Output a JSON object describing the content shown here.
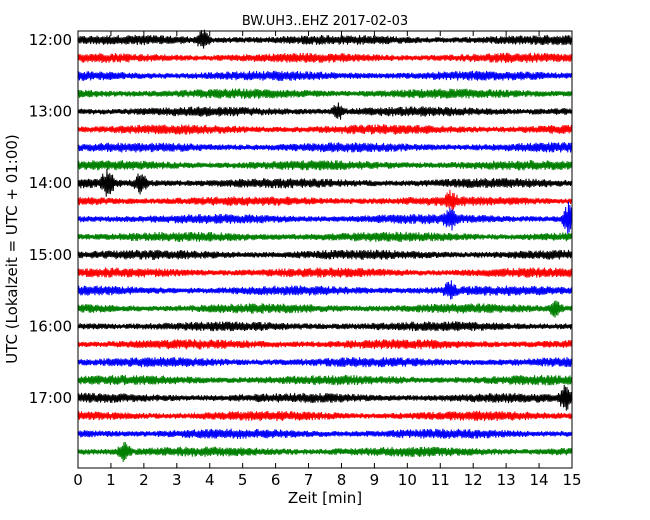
{
  "chart_data": {
    "type": "line",
    "title": "BW.UH3..EHZ 2017-02-03",
    "xlabel": "Zeit  [min]",
    "ylabel": "UTC (Lokalzeit = UTC + 01:00)",
    "xlim": [
      0,
      15
    ],
    "x_ticks": [
      "0",
      "1",
      "2",
      "3",
      "4",
      "5",
      "6",
      "7",
      "8",
      "9",
      "10",
      "11",
      "12",
      "13",
      "14",
      "15"
    ],
    "y_ticks": [
      "12:00",
      "13:00",
      "14:00",
      "15:00",
      "16:00",
      "17:00"
    ],
    "trace_start": "12:00",
    "trace_interval_min": 15,
    "trace_count": 24,
    "colors": [
      "#000000",
      "#ff0000",
      "#0000ff",
      "#008000"
    ],
    "grid": false,
    "events": [
      {
        "trace": 0,
        "minute": 3.8,
        "amplitude": 1.4
      },
      {
        "trace": 4,
        "minute": 7.9,
        "amplitude": 1.2
      },
      {
        "trace": 8,
        "minute": 0.9,
        "amplitude": 2.0
      },
      {
        "trace": 8,
        "minute": 1.9,
        "amplitude": 1.6
      },
      {
        "trace": 9,
        "minute": 11.3,
        "amplitude": 1.2
      },
      {
        "trace": 10,
        "minute": 14.9,
        "amplitude": 2.4
      },
      {
        "trace": 10,
        "minute": 11.3,
        "amplitude": 1.5
      },
      {
        "trace": 14,
        "minute": 11.3,
        "amplitude": 1.3
      },
      {
        "trace": 15,
        "minute": 14.5,
        "amplitude": 1.6
      },
      {
        "trace": 20,
        "minute": 14.8,
        "amplitude": 1.8
      },
      {
        "trace": 23,
        "minute": 1.4,
        "amplitude": 1.6
      }
    ]
  }
}
